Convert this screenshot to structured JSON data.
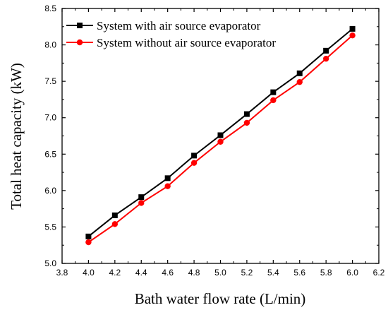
{
  "chart_data": {
    "type": "line",
    "title": "",
    "xlabel": "Bath water flow rate (L/min)",
    "ylabel": "Total heat capacity (kW)",
    "xlim": [
      3.8,
      6.2
    ],
    "ylim": [
      5.0,
      8.5
    ],
    "x_ticks": [
      "3.8",
      "4.0",
      "4.2",
      "4.4",
      "4.6",
      "4.8",
      "5.0",
      "5.2",
      "5.4",
      "5.6",
      "5.8",
      "6.0",
      "6.2"
    ],
    "y_ticks": [
      "5.0",
      "5.5",
      "6.0",
      "6.5",
      "7.0",
      "7.5",
      "8.0",
      "8.5"
    ],
    "x": [
      4.0,
      4.2,
      4.4,
      4.6,
      4.8,
      5.0,
      5.2,
      5.4,
      5.6,
      5.8,
      6.0
    ],
    "grid": false,
    "legend_position": "top-left",
    "series": [
      {
        "name": "System with air source evaporator",
        "color": "#000000",
        "marker": "square",
        "values": [
          5.37,
          5.66,
          5.91,
          6.17,
          6.48,
          6.76,
          7.05,
          7.35,
          7.61,
          7.92,
          8.22
        ]
      },
      {
        "name": "System without air source evaporator",
        "color": "#ff0000",
        "marker": "circle",
        "values": [
          5.29,
          5.54,
          5.83,
          6.06,
          6.38,
          6.67,
          6.93,
          7.24,
          7.49,
          7.81,
          8.13
        ]
      }
    ]
  }
}
